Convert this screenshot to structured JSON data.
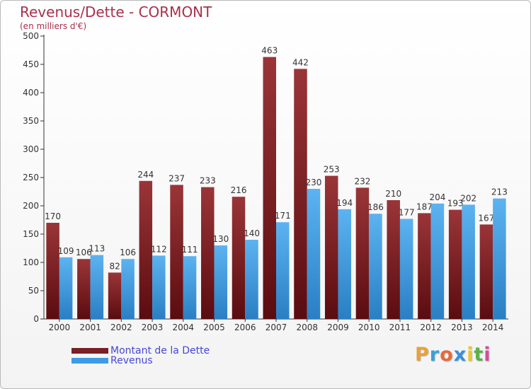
{
  "title": "Revenus/Dette - CORMONT",
  "subtitle": "(en milliers d'€)",
  "chart_data": {
    "type": "bar",
    "title": "Revenus/Dette - CORMONT",
    "ylabel": "(en milliers d'€)",
    "xlabel": "",
    "categories": [
      "2000",
      "2001",
      "2002",
      "2003",
      "2004",
      "2005",
      "2006",
      "2007",
      "2008",
      "2009",
      "2010",
      "2011",
      "2012",
      "2013",
      "2014"
    ],
    "series": [
      {
        "name": "Montant de la Dette",
        "color": "#7a1f24",
        "values": [
          170,
          106,
          82,
          244,
          237,
          233,
          216,
          463,
          442,
          253,
          232,
          210,
          187,
          193,
          167
        ]
      },
      {
        "name": "Revenus",
        "color": "#3d9be6",
        "values": [
          109,
          113,
          106,
          112,
          111,
          130,
          140,
          171,
          230,
          194,
          186,
          177,
          204,
          202,
          213
        ]
      }
    ],
    "ylim": [
      0,
      500
    ],
    "yticks": [
      0,
      50,
      100,
      150,
      200,
      250,
      300,
      350,
      400,
      450,
      500
    ],
    "grid": false,
    "legend": "bottom-left"
  },
  "legend": [
    {
      "label": "Montant de la Dette",
      "color": "#7a1f24"
    },
    {
      "label": "Revenus",
      "color": "#3d9be6"
    }
  ],
  "logo": {
    "letters": [
      "P",
      "r",
      "o",
      "x",
      "i",
      "t",
      "i"
    ],
    "colors": [
      "#e8a13a",
      "#3aa0d8",
      "#e86a3a",
      "#3a8ed8",
      "#e8c83a",
      "#5ab04a",
      "#d84a9a"
    ]
  }
}
